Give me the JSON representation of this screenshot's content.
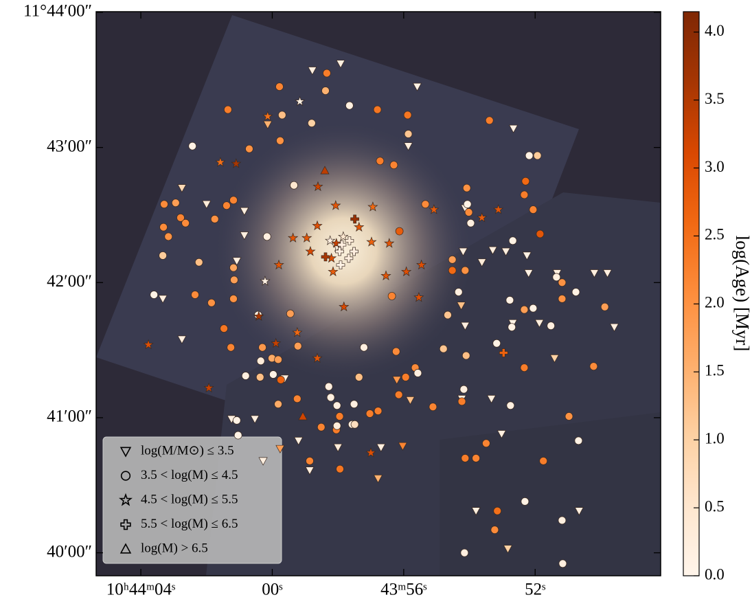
{
  "chart_data": {
    "type": "scatter",
    "cmap": "Oranges",
    "colorbar_label": "log(Age) [Myr]",
    "clim": [
      0,
      4.15
    ],
    "cticks": [
      {
        "value": 0,
        "label": "0.0"
      },
      0.5,
      {
        "value": 1,
        "label": "1.0"
      },
      1.5,
      {
        "value": 2,
        "label": "2.0"
      },
      2.5,
      {
        "value": 3,
        "label": "3.0"
      },
      3.5,
      {
        "value": 4,
        "label": "4.0"
      }
    ],
    "xlim": [
      65.36,
      48.18
    ],
    "ylim": [
      39.83,
      44.005
    ],
    "xticks": [
      {
        "value": 64,
        "label": "10ʰ44ᵐ04ˢ"
      },
      {
        "value": 60,
        "label": "00ˢ"
      },
      {
        "value": 56,
        "label": "43ᵐ56ˢ"
      },
      {
        "value": 52,
        "label": "52ˢ"
      }
    ],
    "yticks": [
      {
        "value": 44,
        "label": "11°44′00″"
      },
      {
        "value": 43,
        "label": "43′00″"
      },
      {
        "value": 42,
        "label": "42′00″"
      },
      {
        "value": 41,
        "label": "41′00″"
      },
      {
        "value": 40,
        "label": "40′00″"
      }
    ],
    "legend": "lower left",
    "series": [
      {
        "name": "log(M/M⊙) ≤ 3.5",
        "marker": "v",
        "x": [
          58.78,
          57.92,
          55.59,
          52.66,
          60.14,
          55.86,
          62.75,
          62.0,
          60.85,
          60.85,
          61.08,
          63.33,
          62.75,
          61.24,
          60.53,
          59.2,
          56.69,
          54.13,
          54.19,
          53.29,
          52.89,
          53.62,
          52.25,
          52.2,
          51.87,
          52.68,
          51.33,
          50.2,
          49.8,
          49.59,
          54.13,
          53.8,
          53.02,
          53.33,
          54.23,
          50.66,
          52.83,
          51.41,
          54.25,
          55.8,
          56.21,
          59.62,
          59.76,
          58.86,
          58.0,
          60.28,
          56.03,
          56.78
        ],
        "y": [
          43.57,
          43.62,
          43.45,
          43.14,
          43.17,
          43.01,
          42.7,
          42.58,
          42.53,
          42.35,
          42.16,
          41.88,
          41.58,
          40.99,
          40.99,
          40.83,
          40.78,
          42.55,
          42.23,
          42.24,
          42.23,
          42.15,
          42.2,
          42.07,
          41.7,
          41.7,
          42.07,
          42.07,
          42.07,
          41.67,
          41.68,
          40.31,
          40.88,
          41.14,
          41.14,
          40.31,
          40.03,
          41.44,
          41.83,
          41.13,
          41.28,
          41.29,
          40.77,
          40.61,
          40.78,
          40.68,
          40.79,
          40.55
        ],
        "c": [
          0.2,
          0.2,
          0.1,
          0.1,
          1.5,
          0.2,
          0.8,
          0.3,
          0.2,
          0.2,
          0.2,
          0.2,
          0.2,
          0.2,
          0.2,
          0.2,
          0.2,
          0.1,
          0.2,
          0.2,
          0.2,
          0.3,
          0.1,
          0.1,
          0.2,
          0.1,
          0.2,
          0.2,
          0.2,
          0.2,
          0.2,
          0.2,
          0.2,
          0.2,
          0.2,
          0.2,
          1.0,
          1.0,
          1.3,
          1.3,
          1.9,
          0.2,
          1.8,
          0.2,
          0.3,
          0.2,
          2.2,
          1.5
        ]
      },
      {
        "name": "3.5 < log(M) ≤ 4.5",
        "marker": "o",
        "x": [
          58.34,
          59.78,
          58.38,
          57.65,
          56.8,
          55.88,
          61.35,
          59.7,
          58.8,
          55.86,
          53.39,
          62.43,
          60.7,
          59.76,
          56.72,
          56.3,
          52.18,
          51.93,
          59.34,
          54.08,
          52.29,
          63.29,
          62.94,
          61.39,
          61.18,
          62.79,
          61.75,
          62.64,
          63.31,
          63.16,
          63.33,
          62.23,
          61.18,
          61.16,
          60.16,
          55.34,
          54.06,
          54.02,
          53.96,
          52.33,
          52.06,
          51.85,
          56.13,
          52.68,
          54.52,
          54.13,
          54.52,
          54.33,
          54.66,
          52.77,
          52.33,
          52.06,
          51.52,
          51.35,
          51.18,
          51.18,
          50.76,
          49.88,
          52.71,
          53.17,
          52.33,
          50.22,
          50.97,
          52.75,
          54.17,
          54.23,
          54.1,
          54.79,
          56.23,
          55.65,
          55.57,
          55.94,
          56.36,
          57.21,
          57.36,
          58.28,
          58.22,
          58.03,
          57.51,
          57.95,
          58.51,
          58.05,
          58.03,
          57.57,
          57.49,
          57.03,
          56.78,
          56.15,
          55.11,
          59.24,
          59.82,
          60.37,
          59.74,
          59.97,
          60.81,
          60.35,
          60.01,
          59.82,
          59.22,
          60.3,
          61.26,
          61.47,
          60.43,
          59.45,
          61.85,
          62.35,
          63.6,
          61.18,
          61.08,
          61.04,
          58.86,
          57.94,
          53.8,
          54.13,
          53.49,
          51.75,
          50.68,
          52.31,
          53.15,
          53.23,
          51.18,
          51.16,
          54.15
        ],
        "y": [
          43.55,
          43.45,
          43.42,
          43.31,
          43.28,
          43.24,
          43.28,
          43.24,
          43.18,
          43.1,
          43.2,
          43.01,
          42.99,
          43.05,
          42.9,
          42.87,
          42.94,
          42.94,
          42.72,
          42.7,
          42.75,
          42.58,
          42.59,
          42.57,
          42.61,
          42.48,
          42.47,
          42.44,
          42.41,
          42.34,
          42.2,
          42.15,
          42.11,
          42.02,
          42.34,
          42.58,
          42.58,
          42.52,
          42.44,
          42.65,
          42.54,
          42.36,
          42.38,
          42.31,
          42.17,
          42.09,
          42.09,
          41.93,
          41.76,
          41.87,
          41.8,
          41.81,
          41.68,
          42.04,
          42.0,
          41.88,
          41.93,
          41.82,
          41.67,
          41.55,
          41.37,
          41.38,
          41.01,
          41.09,
          41.21,
          41.12,
          41.46,
          41.51,
          41.49,
          41.37,
          41.33,
          41.3,
          41.9,
          41.52,
          41.3,
          41.23,
          41.15,
          41.09,
          41.1,
          41.01,
          40.93,
          40.91,
          40.94,
          40.95,
          40.95,
          41.03,
          41.05,
          41.17,
          41.08,
          41.14,
          41.1,
          41.3,
          41.28,
          41.32,
          41.31,
          41.42,
          41.44,
          41.43,
          41.53,
          41.52,
          41.52,
          41.66,
          41.76,
          41.77,
          41.85,
          41.91,
          41.91,
          41.88,
          40.98,
          40.87,
          40.68,
          40.62,
          40.7,
          40.7,
          40.81,
          40.68,
          40.83,
          40.38,
          40.31,
          40.17,
          40.24,
          39.92,
          40.0
        ],
        "c": [
          2.3,
          2.2,
          1.5,
          0.2,
          2.4,
          2.4,
          2.3,
          1.3,
          1.0,
          1.2,
          2.3,
          0.1,
          2.0,
          2.0,
          2.3,
          2.2,
          0.1,
          1.1,
          0.5,
          2.0,
          2.6,
          2.1,
          1.8,
          2.2,
          2.2,
          2.2,
          2.0,
          2.1,
          2.1,
          2.0,
          1.1,
          1.3,
          1.7,
          1.8,
          0.2,
          2.1,
          0.1,
          2.1,
          0.2,
          2.3,
          2.2,
          2.9,
          2.8,
          0.1,
          1.8,
          2.0,
          2.6,
          0.2,
          1.2,
          0.1,
          1.8,
          0.1,
          0.2,
          0.2,
          2.0,
          2.0,
          0.1,
          1.8,
          0.1,
          0.1,
          2.3,
          2.1,
          2.0,
          0.2,
          0.2,
          2.3,
          1.3,
          1.2,
          2.1,
          2.1,
          0.2,
          2.3,
          2.2,
          0.2,
          1.3,
          0.2,
          0.2,
          0.2,
          0.2,
          2.3,
          2.2,
          2.3,
          0.3,
          0.2,
          0.7,
          2.3,
          2.3,
          2.3,
          2.2,
          2.2,
          1.6,
          1.3,
          2.7,
          0.1,
          0.2,
          0.3,
          1.6,
          1.8,
          1.8,
          1.9,
          2.2,
          2.4,
          0.2,
          1.8,
          2.0,
          2.1,
          0.1,
          2.0,
          0.1,
          0.1,
          2.2,
          2.4,
          2.2,
          2.3,
          2.2,
          2.3,
          0.1,
          0.1,
          2.5,
          2.1,
          0.2,
          0.2,
          0.2
        ]
      },
      {
        "name": "4.5 < log(M) ≤ 5.5",
        "marker": "*",
        "x": [
          59.16,
          60.14,
          61.58,
          61.1,
          58.61,
          58.07,
          56.94,
          58.63,
          55.08,
          53.62,
          53.12,
          56.98,
          56.44,
          57.36,
          58.95,
          59.37,
          59.8,
          58.84,
          58.15,
          58.2,
          56.54,
          55.92,
          55.46,
          55.54,
          57.82,
          60.22,
          59.24,
          58.63,
          63.77,
          61.93,
          59.89,
          60.41,
          57.0,
          58.24,
          58.01,
          57.84,
          58.05
        ],
        "y": [
          43.34,
          43.23,
          42.89,
          42.88,
          42.71,
          42.57,
          42.56,
          42.42,
          42.54,
          42.48,
          42.54,
          42.3,
          42.29,
          42.41,
          42.33,
          42.33,
          42.13,
          42.23,
          42.08,
          42.18,
          42.05,
          42.08,
          42.13,
          41.89,
          41.82,
          42.01,
          41.63,
          41.44,
          41.54,
          41.22,
          41.55,
          41.75,
          40.74,
          42.31,
          42.26,
          42.34,
          42.29
        ],
        "c": [
          0.1,
          2.5,
          2.5,
          3.6,
          3.2,
          2.9,
          2.6,
          3.0,
          2.8,
          2.8,
          2.9,
          2.7,
          2.9,
          2.9,
          2.9,
          2.9,
          2.9,
          3.1,
          2.8,
          3.0,
          2.9,
          3.0,
          3.0,
          3.0,
          3.1,
          0.1,
          2.6,
          2.9,
          3.0,
          3.3,
          3.3,
          3.6,
          3.0,
          0.2,
          0.2,
          0.5,
          3.3
        ]
      },
      {
        "name": "5.5 < log(M) ≤ 6.5",
        "marker": "P",
        "x": [
          57.49,
          58.38,
          57.88,
          57.65,
          57.95,
          57.67,
          57.51,
          57.92,
          52.96
        ],
        "y": [
          42.47,
          42.19,
          42.28,
          42.31,
          42.23,
          42.18,
          42.23,
          42.13,
          41.48
        ],
        "c": [
          3.8,
          3.6,
          0.2,
          0.3,
          0.2,
          0.2,
          0.2,
          0.1,
          2.7
        ]
      },
      {
        "name": "log(M) > 6.5",
        "marker": "^",
        "x": [
          59.07,
          58.4
        ],
        "y": [
          41.01,
          42.83
        ],
        "c": [
          3.2,
          3.4
        ]
      }
    ]
  }
}
